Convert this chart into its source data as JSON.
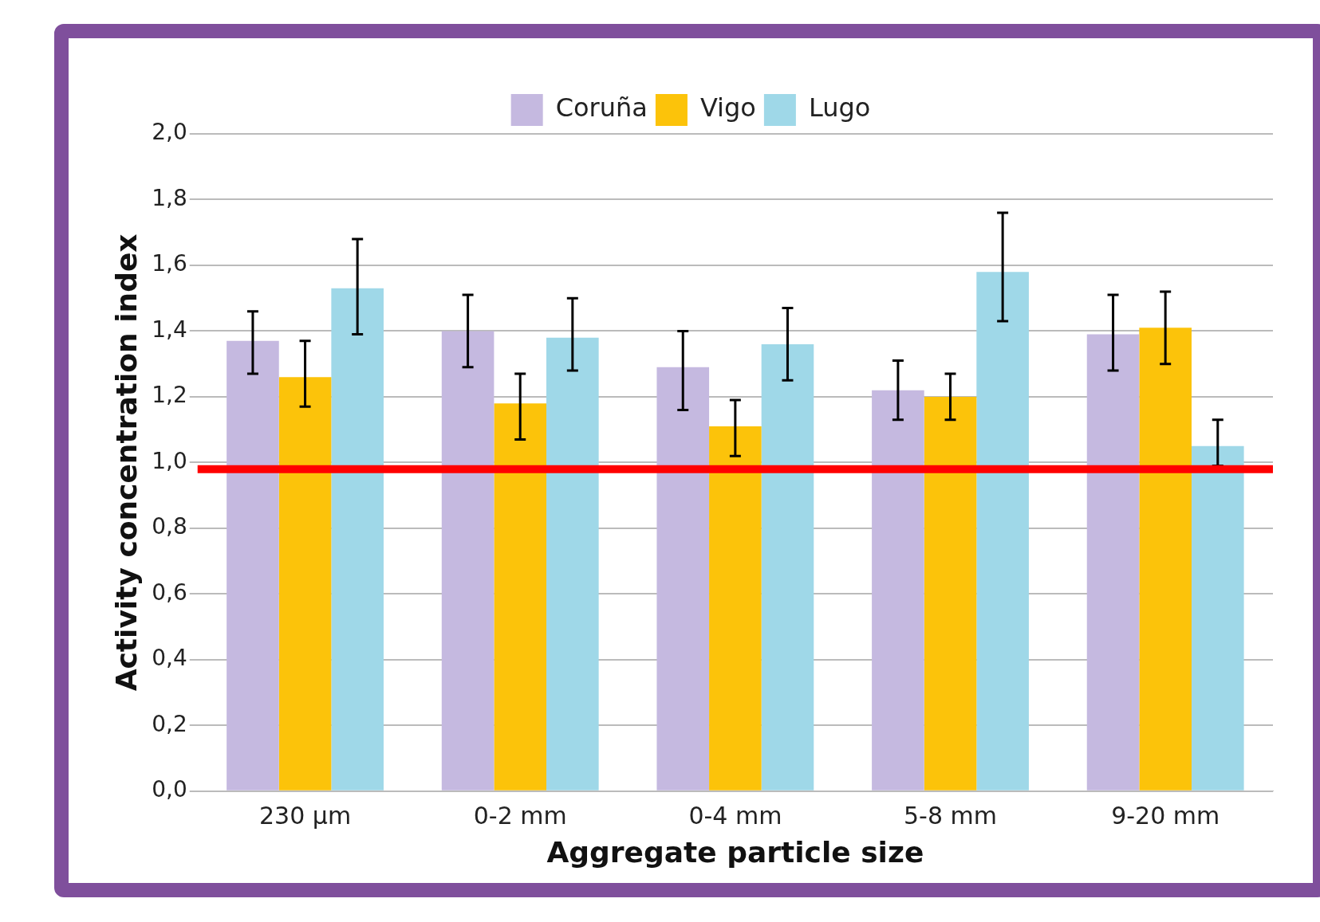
{
  "chart_data": {
    "type": "bar",
    "xlabel": "Aggregate particle size",
    "ylabel": "Activity concentration index",
    "categories": [
      "230 µm",
      "0-2 mm",
      "0-4 mm",
      "5-8 mm",
      "9-20 mm"
    ],
    "series": [
      {
        "name": "Coruña",
        "color": "#c5b9e0",
        "values": [
          1.37,
          1.4,
          1.29,
          1.22,
          1.39
        ],
        "errors": [
          [
            1.27,
            1.46
          ],
          [
            1.29,
            1.51
          ],
          [
            1.16,
            1.4
          ],
          [
            1.13,
            1.31
          ],
          [
            1.28,
            1.51
          ]
        ]
      },
      {
        "name": "Vigo",
        "color": "#fcc30a",
        "values": [
          1.26,
          1.18,
          1.11,
          1.2,
          1.41
        ],
        "errors": [
          [
            1.17,
            1.37
          ],
          [
            1.07,
            1.27
          ],
          [
            1.02,
            1.19
          ],
          [
            1.13,
            1.27
          ],
          [
            1.3,
            1.52
          ]
        ]
      },
      {
        "name": "Lugo",
        "color": "#9fd8e8",
        "values": [
          1.53,
          1.38,
          1.36,
          1.58,
          1.05
        ],
        "errors": [
          [
            1.39,
            1.68
          ],
          [
            1.28,
            1.5
          ],
          [
            1.25,
            1.47
          ],
          [
            1.43,
            1.76
          ],
          [
            0.99,
            1.13
          ]
        ]
      }
    ],
    "ylim": [
      0,
      2
    ],
    "yticks": [
      {
        "value": 0,
        "label": "0,0"
      },
      {
        "value": 0.2,
        "label": "0,2"
      },
      {
        "value": 0.4,
        "label": "0,4"
      },
      {
        "value": 0.6,
        "label": "0,6"
      },
      {
        "value": 0.8,
        "label": "0,8"
      },
      {
        "value": 1,
        "label": "1,0"
      },
      {
        "value": 1.2,
        "label": "1,2"
      },
      {
        "value": 1.4,
        "label": "1,4"
      },
      {
        "value": 1.6,
        "label": "1,6"
      },
      {
        "value": 1.8,
        "label": "1,8"
      },
      {
        "value": 2,
        "label": "2,0"
      }
    ],
    "grid": "y",
    "legend": "top",
    "ref_lines": [
      {
        "axis": "y",
        "value": 0.98,
        "label": null,
        "color": "#ff0000"
      }
    ]
  }
}
